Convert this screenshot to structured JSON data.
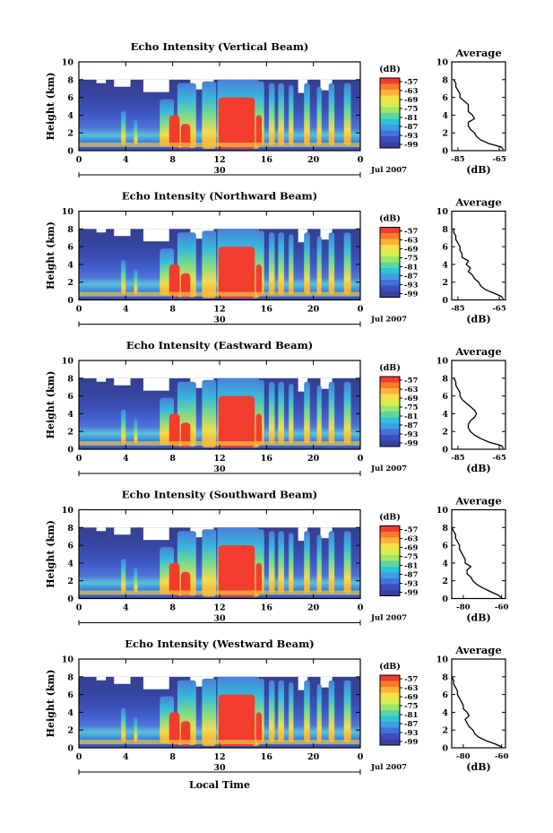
{
  "chart_data": {
    "type": "heatmap",
    "x_label": "Local Time",
    "date_label": "30",
    "month_label": "Jul 2007",
    "x_ticks": [
      "0",
      "4",
      "8",
      "12",
      "16",
      "20",
      "0"
    ],
    "y_label": "Height (km)",
    "y_ticks": [
      "0",
      "2",
      "4",
      "6",
      "8",
      "10"
    ],
    "ylim": [
      0,
      10
    ],
    "colorbar_unit": "(dB)",
    "colorbar_ticks": [
      "-57",
      "-63",
      "-69",
      "-75",
      "-81",
      "-87",
      "-93",
      "-99"
    ],
    "colorbar_colors": [
      "#f23c2e",
      "#fb7a28",
      "#fdb03a",
      "#f5e04a",
      "#d7ee50",
      "#9ce66a",
      "#5cd6a0",
      "#2cc4d6",
      "#3e9ee6",
      "#4570dc",
      "#3b4ec2",
      "#3a3f9c"
    ],
    "profile_title": "Average",
    "profile_xlabel": "(dB)",
    "panels": [
      {
        "title": "Echo Intensity (Vertical Beam)",
        "profile_xticks": [
          "-85",
          "-65"
        ],
        "profile_xlim": [
          -88,
          -62
        ],
        "profile": [
          [
            -63,
            0.1
          ],
          [
            -64,
            0.4
          ],
          [
            -70,
            0.8
          ],
          [
            -74,
            1.2
          ],
          [
            -76,
            1.6
          ],
          [
            -77,
            2.0
          ],
          [
            -79,
            2.4
          ],
          [
            -80,
            2.8
          ],
          [
            -80,
            3.2
          ],
          [
            -77,
            3.6
          ],
          [
            -78,
            4.0
          ],
          [
            -80,
            4.4
          ],
          [
            -80,
            4.8
          ],
          [
            -80,
            5.2
          ],
          [
            -82,
            5.6
          ],
          [
            -84,
            6.0
          ],
          [
            -84,
            6.4
          ],
          [
            -85,
            6.8
          ],
          [
            -86,
            7.2
          ],
          [
            -86,
            7.6
          ],
          [
            -87,
            8.0
          ]
        ]
      },
      {
        "title": "Echo Intensity (Northward Beam)",
        "profile_xticks": [
          "-85",
          "-65"
        ],
        "profile_xlim": [
          -88,
          -62
        ],
        "profile": [
          [
            -63,
            0.1
          ],
          [
            -64,
            0.4
          ],
          [
            -68,
            0.8
          ],
          [
            -72,
            1.2
          ],
          [
            -74,
            1.6
          ],
          [
            -75,
            2.0
          ],
          [
            -77,
            2.4
          ],
          [
            -78,
            2.8
          ],
          [
            -80,
            3.2
          ],
          [
            -79,
            3.6
          ],
          [
            -81,
            4.0
          ],
          [
            -80,
            4.4
          ],
          [
            -83,
            4.8
          ],
          [
            -83,
            5.2
          ],
          [
            -84,
            5.6
          ],
          [
            -84,
            6.0
          ],
          [
            -85,
            6.4
          ],
          [
            -86,
            6.8
          ],
          [
            -86,
            7.2
          ],
          [
            -87,
            7.6
          ],
          [
            -87,
            8.0
          ]
        ]
      },
      {
        "title": "Echo Intensity (Eastward Beam)",
        "profile_xticks": [
          "-85",
          "-65"
        ],
        "profile_xlim": [
          -88,
          -62
        ],
        "profile": [
          [
            -63,
            0.1
          ],
          [
            -64,
            0.4
          ],
          [
            -70,
            0.8
          ],
          [
            -74,
            1.2
          ],
          [
            -77,
            1.6
          ],
          [
            -79,
            2.0
          ],
          [
            -80,
            2.4
          ],
          [
            -80,
            2.8
          ],
          [
            -79,
            3.2
          ],
          [
            -77,
            3.6
          ],
          [
            -76,
            4.0
          ],
          [
            -77,
            4.4
          ],
          [
            -79,
            4.8
          ],
          [
            -81,
            5.2
          ],
          [
            -83,
            5.6
          ],
          [
            -84,
            6.0
          ],
          [
            -84,
            6.4
          ],
          [
            -85,
            6.8
          ],
          [
            -86,
            7.2
          ],
          [
            -86,
            7.6
          ],
          [
            -87,
            8.0
          ]
        ]
      },
      {
        "title": "Echo Intensity (Southward Beam)",
        "profile_xticks": [
          "-80",
          "-60"
        ],
        "profile_xlim": [
          -86,
          -58
        ],
        "profile": [
          [
            -60,
            0.1
          ],
          [
            -62,
            0.4
          ],
          [
            -66,
            0.8
          ],
          [
            -70,
            1.2
          ],
          [
            -73,
            1.6
          ],
          [
            -75,
            2.0
          ],
          [
            -76,
            2.4
          ],
          [
            -78,
            2.8
          ],
          [
            -78,
            3.2
          ],
          [
            -76,
            3.6
          ],
          [
            -79,
            4.0
          ],
          [
            -79,
            4.4
          ],
          [
            -80,
            4.8
          ],
          [
            -81,
            5.2
          ],
          [
            -82,
            5.6
          ],
          [
            -82,
            6.0
          ],
          [
            -83,
            6.4
          ],
          [
            -84,
            6.8
          ],
          [
            -84,
            7.2
          ],
          [
            -85,
            7.6
          ],
          [
            -86,
            8.0
          ]
        ]
      },
      {
        "title": "Echo Intensity (Westward Beam)",
        "profile_xticks": [
          "-80",
          "-60"
        ],
        "profile_xlim": [
          -86,
          -58
        ],
        "profile": [
          [
            -60,
            0.1
          ],
          [
            -63,
            0.4
          ],
          [
            -68,
            0.8
          ],
          [
            -72,
            1.2
          ],
          [
            -74,
            1.6
          ],
          [
            -75,
            2.0
          ],
          [
            -77,
            2.4
          ],
          [
            -78,
            2.8
          ],
          [
            -79,
            3.2
          ],
          [
            -77,
            3.6
          ],
          [
            -78,
            4.0
          ],
          [
            -80,
            4.4
          ],
          [
            -80,
            4.8
          ],
          [
            -81,
            5.2
          ],
          [
            -82,
            5.6
          ],
          [
            -83,
            6.0
          ],
          [
            -83,
            6.4
          ],
          [
            -84,
            6.8
          ],
          [
            -85,
            7.2
          ],
          [
            -85,
            7.6
          ],
          [
            -86,
            8.0
          ]
        ]
      }
    ]
  }
}
